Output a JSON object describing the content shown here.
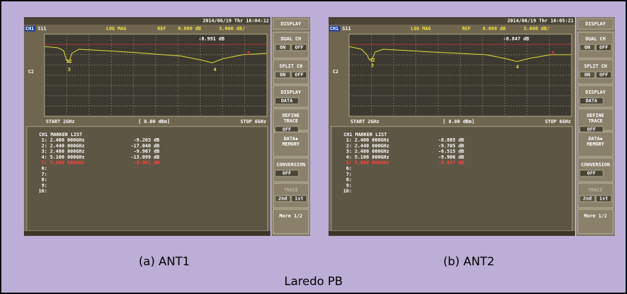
{
  "figure_title": "Laredo PB",
  "menu": {
    "title": "DISPLAY",
    "keys": [
      {
        "label": [
          "DUAL CH"
        ],
        "options": [
          "ON",
          "OFF"
        ]
      },
      {
        "label": [
          "SPLIT CH"
        ],
        "options": [
          "ON",
          "OFF"
        ]
      },
      {
        "label": [
          "DISPLAY"
        ],
        "value": "DATA"
      },
      {
        "label": [
          "DEFINE",
          "TRACE"
        ],
        "value": "OFF"
      },
      {
        "label": [
          "DATA◆",
          "MEMORY"
        ]
      },
      {
        "label": [
          "CONVERSION"
        ],
        "value": "OFF"
      },
      {
        "label": [
          "TRACE"
        ],
        "options": [
          "2nd",
          "1st"
        ]
      },
      {
        "label": [
          "More 1/2"
        ]
      }
    ]
  },
  "panels": [
    {
      "caption": "(a) ANT1",
      "datetime": "2014/06/19 Thr 16:04:12",
      "channel": "CH1",
      "parameter": "S11",
      "format": "LOG MAG",
      "ref_label": "REF",
      "ref_value": "0.000 dB",
      "scale": "5.000 dB/",
      "marker_readout": "-8.991 dB",
      "channel2": "C2",
      "start": "START 2GHz",
      "power": "[ 0.00 dBm]",
      "stop": "STOP 6GHz",
      "trace_markers": [
        "1",
        "2",
        "3",
        "4",
        "5"
      ],
      "marker_list": {
        "title": "CH1 MARKER LIST",
        "rows": [
          [
            "1:",
            "2.400 000GHz",
            "-9.203 dB"
          ],
          [
            "2:",
            "2.440 000GHz",
            "-17.040 dB"
          ],
          [
            "3:",
            "2.480 000GHz",
            "-9.967 dB"
          ],
          [
            "4:",
            "5.100 000GHz",
            "-13.099 dB"
          ],
          [
            "5:",
            "5.800 000GHz",
            "-8.991 dB"
          ],
          [
            "6:"
          ],
          [
            "7:"
          ],
          [
            "8:"
          ],
          [
            "9:"
          ],
          [
            "10:"
          ]
        ]
      }
    },
    {
      "caption": "(b) ANT2",
      "datetime": "2014/06/19 Thr 16:05:21",
      "channel": "CH1",
      "parameter": "S11",
      "format": "LOG MAG",
      "ref_label": "REF",
      "ref_value": "0.000 dB",
      "scale": "5.000 dB/",
      "marker_readout": "-0.847 dB",
      "channel2": "C2",
      "start": "START 2GHz",
      "power": "[ 0.00 dBm]",
      "stop": "STOP 6GHz",
      "trace_markers": [
        "1",
        "2",
        "3",
        "4",
        "5"
      ],
      "marker_list": {
        "title": "CH1 MARKER LIST",
        "rows": [
          [
            "1:",
            "2.400 000GHz",
            "-8.885 dB"
          ],
          [
            "2:",
            "2.440 000GHz",
            "-9.705 dB"
          ],
          [
            "3:",
            "2.480 000GHz",
            "-6.515 dB"
          ],
          [
            "4:",
            "5.100 000GHz",
            "-9.906 dB"
          ],
          [
            "5:",
            "5.800 000GHz",
            "-0.847 dB"
          ],
          [
            "6:"
          ],
          [
            "7:"
          ],
          [
            "8:"
          ],
          [
            "9:"
          ],
          [
            "10:"
          ]
        ]
      }
    }
  ]
}
